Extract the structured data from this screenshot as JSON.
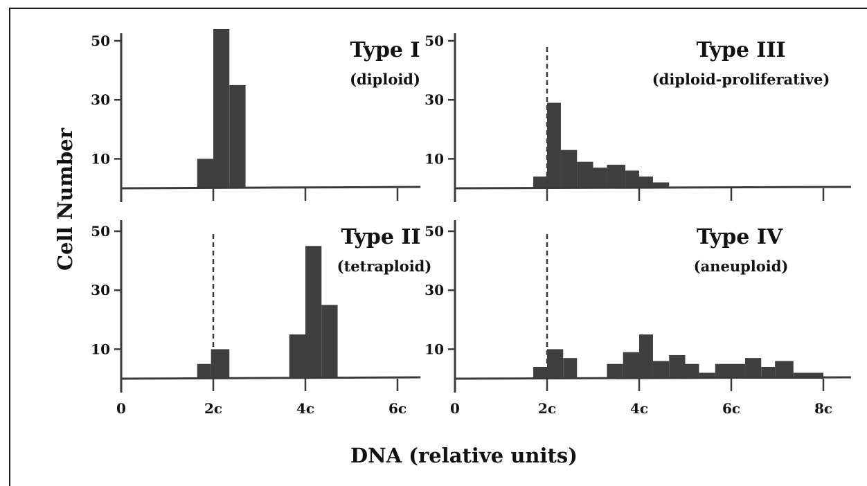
{
  "figure": {
    "xlabel": "DNA (relative units)",
    "ylabel": "Cell Number"
  },
  "chart_data": [
    {
      "type": "bar",
      "title": "Type I",
      "subtitle": "(diploid)",
      "ylabel": "Cell Number",
      "xlabel": "DNA (relative units)",
      "xlim": [
        0,
        6.5
      ],
      "ylim": [
        0,
        55
      ],
      "y_ticks": [
        10,
        30,
        50
      ],
      "x_ticks": [
        0,
        2,
        4,
        6
      ],
      "x_tick_labels": [
        "0",
        "2c",
        "4c",
        "6c"
      ],
      "reference_line_x": null,
      "bins": [
        {
          "x0": 1.65,
          "x1": 2.0,
          "value": 10
        },
        {
          "x0": 2.0,
          "x1": 2.35,
          "value": 54
        },
        {
          "x0": 2.35,
          "x1": 2.7,
          "value": 35
        }
      ]
    },
    {
      "type": "bar",
      "title": "Type III",
      "subtitle": "(diploid-proliferative)",
      "ylabel": "Cell Number",
      "xlabel": "DNA (relative units)",
      "xlim": [
        0,
        8.6
      ],
      "ylim": [
        0,
        55
      ],
      "y_ticks": [
        10,
        30,
        50
      ],
      "x_ticks": [
        0,
        2,
        4,
        6,
        8
      ],
      "x_tick_labels": [
        "0",
        "2c",
        "4c",
        "6c",
        "8c"
      ],
      "reference_line_x": 2,
      "bins": [
        {
          "x0": 1.7,
          "x1": 2.0,
          "value": 4
        },
        {
          "x0": 2.0,
          "x1": 2.3,
          "value": 29
        },
        {
          "x0": 2.3,
          "x1": 2.65,
          "value": 13
        },
        {
          "x0": 2.65,
          "x1": 3.0,
          "value": 9
        },
        {
          "x0": 3.0,
          "x1": 3.3,
          "value": 7
        },
        {
          "x0": 3.3,
          "x1": 3.7,
          "value": 8
        },
        {
          "x0": 3.7,
          "x1": 4.0,
          "value": 6
        },
        {
          "x0": 4.0,
          "x1": 4.3,
          "value": 4
        },
        {
          "x0": 4.3,
          "x1": 4.65,
          "value": 2
        }
      ]
    },
    {
      "type": "bar",
      "title": "Type II",
      "subtitle": "(tetraploid)",
      "ylabel": "Cell Number",
      "xlabel": "DNA (relative units)",
      "xlim": [
        0,
        6.5
      ],
      "ylim": [
        0,
        55
      ],
      "y_ticks": [
        10,
        30,
        50
      ],
      "x_ticks": [
        0,
        2,
        4,
        6
      ],
      "x_tick_labels": [
        "0",
        "2c",
        "4c",
        "6c"
      ],
      "reference_line_x": 2,
      "bins": [
        {
          "x0": 1.65,
          "x1": 1.95,
          "value": 5
        },
        {
          "x0": 1.95,
          "x1": 2.35,
          "value": 10
        },
        {
          "x0": 3.65,
          "x1": 4.0,
          "value": 15
        },
        {
          "x0": 4.0,
          "x1": 4.35,
          "value": 45
        },
        {
          "x0": 4.35,
          "x1": 4.7,
          "value": 25
        }
      ]
    },
    {
      "type": "bar",
      "title": "Type IV",
      "subtitle": "(aneuploid)",
      "ylabel": "Cell Number",
      "xlabel": "DNA (relative units)",
      "xlim": [
        0,
        8.6
      ],
      "ylim": [
        0,
        55
      ],
      "y_ticks": [
        10,
        30,
        50
      ],
      "x_ticks": [
        0,
        2,
        4,
        6,
        8
      ],
      "x_tick_labels": [
        "0",
        "2c",
        "4c",
        "6c",
        "8c"
      ],
      "reference_line_x": 2,
      "bins": [
        {
          "x0": 1.7,
          "x1": 2.0,
          "value": 4
        },
        {
          "x0": 2.0,
          "x1": 2.35,
          "value": 10
        },
        {
          "x0": 2.35,
          "x1": 2.65,
          "value": 7
        },
        {
          "x0": 3.3,
          "x1": 3.65,
          "value": 5
        },
        {
          "x0": 3.65,
          "x1": 4.0,
          "value": 9
        },
        {
          "x0": 4.0,
          "x1": 4.3,
          "value": 15
        },
        {
          "x0": 4.3,
          "x1": 4.65,
          "value": 6
        },
        {
          "x0": 4.65,
          "x1": 5.0,
          "value": 8
        },
        {
          "x0": 5.0,
          "x1": 5.3,
          "value": 5
        },
        {
          "x0": 5.3,
          "x1": 5.65,
          "value": 2
        },
        {
          "x0": 5.65,
          "x1": 6.0,
          "value": 5
        },
        {
          "x0": 6.0,
          "x1": 6.3,
          "value": 5
        },
        {
          "x0": 6.3,
          "x1": 6.65,
          "value": 7
        },
        {
          "x0": 6.65,
          "x1": 6.95,
          "value": 4
        },
        {
          "x0": 6.95,
          "x1": 7.35,
          "value": 6
        },
        {
          "x0": 7.35,
          "x1": 8.0,
          "value": 2
        }
      ]
    }
  ]
}
